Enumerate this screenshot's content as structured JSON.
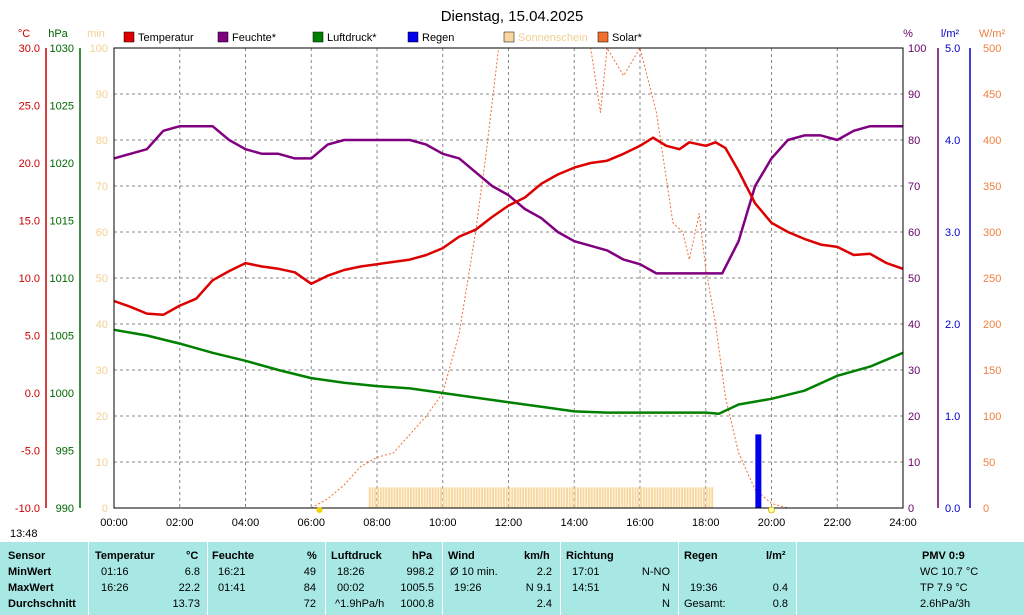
{
  "chart_data": {
    "type": "line",
    "title": "Dienstag, 15.04.2025",
    "x_ticks": [
      "00:00",
      "02:00",
      "04:00",
      "06:00",
      "08:00",
      "10:00",
      "12:00",
      "14:00",
      "16:00",
      "18:00",
      "20:00",
      "22:00",
      "24:00"
    ],
    "axes": {
      "temp": {
        "unit": "°C",
        "range": [
          -10,
          30
        ],
        "ticks": [
          "30.0",
          "25.0",
          "20.0",
          "15.0",
          "10.0",
          "5.0",
          "0.0",
          "-5.0",
          "-10.0"
        ],
        "color": "#cc0000"
      },
      "pressure": {
        "unit": "hPa",
        "range": [
          990,
          1030
        ],
        "ticks": [
          "1030",
          "1025",
          "1020",
          "1015",
          "1010",
          "1005",
          "1000",
          "995",
          "990"
        ],
        "color": "#006600"
      },
      "minutes": {
        "unit": "min",
        "range": [
          0,
          100
        ],
        "ticks": [
          "100",
          "90",
          "80",
          "70",
          "60",
          "50",
          "40",
          "30",
          "20",
          "10",
          "0"
        ],
        "color": "#f0d090"
      },
      "humidity": {
        "unit": "%",
        "range": [
          0,
          100
        ],
        "ticks": [
          "100",
          "90",
          "80",
          "70",
          "60",
          "50",
          "40",
          "30",
          "20",
          "10",
          "0"
        ],
        "color": "#660066"
      },
      "rain": {
        "unit": "l/m²",
        "range": [
          0,
          5
        ],
        "ticks": [
          "5.0",
          "4.0",
          "3.0",
          "2.0",
          "1.0",
          "0.0"
        ],
        "color": "#0000cc"
      },
      "solar": {
        "unit": "W/m²",
        "range": [
          0,
          500
        ],
        "ticks": [
          "500",
          "450",
          "400",
          "350",
          "300",
          "250",
          "200",
          "150",
          "100",
          "50",
          "0"
        ],
        "color": "#f08040"
      }
    },
    "legend": [
      {
        "name": "Temperatur",
        "color": "#dd0000"
      },
      {
        "name": "Feuchte*",
        "color": "#800080"
      },
      {
        "name": "Luftdruck*",
        "color": "#008000"
      },
      {
        "name": "Regen",
        "color": "#0000ee"
      },
      {
        "name": "Sonnenschein",
        "color": "#f8d8a0"
      },
      {
        "name": "Solar*",
        "color": "#f07030"
      }
    ],
    "series": {
      "temperature": [
        [
          0,
          8.0
        ],
        [
          0.5,
          7.5
        ],
        [
          1,
          6.9
        ],
        [
          1.5,
          6.8
        ],
        [
          2,
          7.6
        ],
        [
          2.5,
          8.2
        ],
        [
          3,
          9.8
        ],
        [
          3.5,
          10.6
        ],
        [
          4,
          11.3
        ],
        [
          4.5,
          11.0
        ],
        [
          5,
          10.8
        ],
        [
          5.5,
          10.5
        ],
        [
          6,
          9.5
        ],
        [
          6.5,
          10.2
        ],
        [
          7,
          10.7
        ],
        [
          7.5,
          11.0
        ],
        [
          8,
          11.2
        ],
        [
          9,
          11.6
        ],
        [
          9.5,
          12.0
        ],
        [
          10,
          12.6
        ],
        [
          10.5,
          13.6
        ],
        [
          11,
          14.2
        ],
        [
          11.5,
          15.3
        ],
        [
          12,
          16.3
        ],
        [
          12.5,
          17.0
        ],
        [
          13,
          18.2
        ],
        [
          13.5,
          19.0
        ],
        [
          14,
          19.6
        ],
        [
          14.5,
          20.0
        ],
        [
          15,
          20.2
        ],
        [
          15.5,
          20.8
        ],
        [
          16,
          21.5
        ],
        [
          16.4,
          22.2
        ],
        [
          16.8,
          21.5
        ],
        [
          17.2,
          21.2
        ],
        [
          17.5,
          21.8
        ],
        [
          18,
          21.5
        ],
        [
          18.3,
          21.8
        ],
        [
          18.6,
          21.3
        ],
        [
          19,
          19.3
        ],
        [
          19.5,
          16.5
        ],
        [
          20,
          14.8
        ],
        [
          20.5,
          14.0
        ],
        [
          21,
          13.4
        ],
        [
          21.5,
          12.9
        ],
        [
          22,
          12.7
        ],
        [
          22.5,
          12.0
        ],
        [
          23,
          12.1
        ],
        [
          23.5,
          11.3
        ],
        [
          24,
          10.8
        ]
      ],
      "humidity": [
        [
          0,
          76
        ],
        [
          0.5,
          77
        ],
        [
          1,
          78
        ],
        [
          1.5,
          82
        ],
        [
          2,
          83
        ],
        [
          2.5,
          83
        ],
        [
          3,
          83
        ],
        [
          3.5,
          80
        ],
        [
          4,
          78
        ],
        [
          4.5,
          77
        ],
        [
          5,
          77
        ],
        [
          5.5,
          76
        ],
        [
          6,
          76
        ],
        [
          6.5,
          79
        ],
        [
          7,
          80
        ],
        [
          8,
          80
        ],
        [
          9,
          80
        ],
        [
          9.5,
          79
        ],
        [
          10,
          77
        ],
        [
          10.5,
          76
        ],
        [
          11,
          73
        ],
        [
          11.5,
          70
        ],
        [
          12,
          68
        ],
        [
          12.5,
          65
        ],
        [
          13,
          63
        ],
        [
          13.5,
          60
        ],
        [
          14,
          58
        ],
        [
          14.5,
          57
        ],
        [
          15,
          56
        ],
        [
          15.5,
          54
        ],
        [
          16,
          53
        ],
        [
          16.5,
          51
        ],
        [
          17,
          51
        ],
        [
          18,
          51
        ],
        [
          18.5,
          51
        ],
        [
          19,
          58
        ],
        [
          19.5,
          70
        ],
        [
          20,
          76
        ],
        [
          20.5,
          80
        ],
        [
          21,
          81
        ],
        [
          21.5,
          81
        ],
        [
          22,
          80
        ],
        [
          22.5,
          82
        ],
        [
          23,
          83
        ],
        [
          24,
          83
        ]
      ],
      "pressure": [
        [
          0,
          1005.5
        ],
        [
          1,
          1005.0
        ],
        [
          2,
          1004.3
        ],
        [
          3,
          1003.5
        ],
        [
          4,
          1002.8
        ],
        [
          5,
          1002.0
        ],
        [
          6,
          1001.3
        ],
        [
          7,
          1000.9
        ],
        [
          8,
          1000.6
        ],
        [
          9,
          1000.4
        ],
        [
          10,
          1000.0
        ],
        [
          11,
          999.6
        ],
        [
          12,
          999.2
        ],
        [
          13,
          998.8
        ],
        [
          14,
          998.4
        ],
        [
          15,
          998.3
        ],
        [
          16,
          998.3
        ],
        [
          17,
          998.3
        ],
        [
          18,
          998.3
        ],
        [
          18.4,
          998.2
        ],
        [
          19,
          999.0
        ],
        [
          20,
          999.5
        ],
        [
          21,
          1000.2
        ],
        [
          22,
          1001.5
        ],
        [
          23,
          1002.3
        ],
        [
          24,
          1003.5
        ]
      ],
      "solar": [
        [
          6,
          0
        ],
        [
          6.5,
          10
        ],
        [
          7,
          25
        ],
        [
          7.5,
          45
        ],
        [
          8,
          55
        ],
        [
          8.5,
          60
        ],
        [
          9,
          80
        ],
        [
          9.5,
          100
        ],
        [
          10,
          125
        ],
        [
          10.5,
          190
        ],
        [
          11,
          300
        ],
        [
          11.3,
          380
        ],
        [
          11.5,
          440
        ],
        [
          11.7,
          500
        ],
        [
          12,
          500
        ],
        [
          13,
          500
        ],
        [
          14,
          500
        ],
        [
          14.5,
          500
        ],
        [
          14.8,
          430
        ],
        [
          15,
          500
        ],
        [
          15.5,
          470
        ],
        [
          16,
          500
        ],
        [
          16.5,
          430
        ],
        [
          17,
          310
        ],
        [
          17.3,
          300
        ],
        [
          17.5,
          270
        ],
        [
          17.8,
          320
        ],
        [
          18,
          260
        ],
        [
          18.3,
          200
        ],
        [
          18.6,
          120
        ],
        [
          19,
          60
        ],
        [
          19.5,
          20
        ],
        [
          20,
          5
        ],
        [
          20.5,
          0
        ]
      ],
      "sunshine": {
        "from": "07:45",
        "to": "18:15",
        "level_min": 4.5
      },
      "rain": [
        {
          "time": "19:36",
          "value": 0.8
        }
      ]
    }
  },
  "timestamp": "13:48",
  "stats": {
    "headers": {
      "sensor": "Sensor",
      "temp": "Temperatur",
      "temp_unit": "°C",
      "hum": "Feuchte",
      "hum_unit": "%",
      "press": "Luftdruck",
      "press_unit": "hPa",
      "wind": "Wind",
      "wind_unit": "km/h",
      "dir": "Richtung",
      "rain": "Regen",
      "rain_unit": "l/m²",
      "pmv": "PMV 0:9"
    },
    "min": {
      "label": "MinWert",
      "temp_time": "01:16",
      "temp_val": "6.8",
      "hum_time": "16:21",
      "hum_val": "49",
      "press_time": "18:26",
      "press_val": "998.2",
      "wind_label": "Ø 10 min.",
      "wind_val": "2.2",
      "dir_time": "17:01",
      "dir_val": "N-NO",
      "rain_time": "",
      "rain_val": "",
      "extra": "WC 10.7 °C"
    },
    "max": {
      "label": "MaxWert",
      "temp_time": "16:26",
      "temp_val": "22.2",
      "hum_time": "01:41",
      "hum_val": "84",
      "press_time": "00:02",
      "press_val": "1005.5",
      "wind_label": "19:26",
      "wind_val": "N 9.1",
      "dir_time": "14:51",
      "dir_val": "N",
      "rain_time": "19:36",
      "rain_val": "0.4",
      "extra": "TP 7.9 °C"
    },
    "avg": {
      "label": "Durchschnitt",
      "temp_val": "13.73",
      "hum_val": "72",
      "press_time": "^1.9hPa/h",
      "press_val": "1000.8",
      "wind_val": "2.4",
      "dir_val": "N",
      "rain_time": "Gesamt:",
      "rain_val": "0.8",
      "extra": "2.6hPa/3h"
    }
  }
}
